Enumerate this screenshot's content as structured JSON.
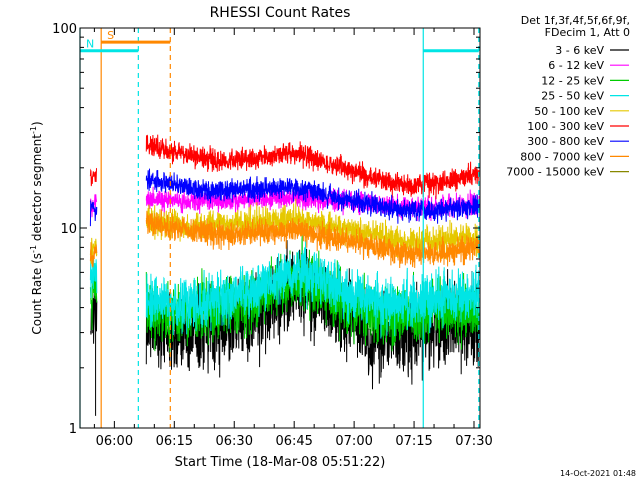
{
  "chart_data": {
    "type": "line",
    "title": "RHESSI Count Rates",
    "xlabel": "Start Time (18-Mar-08 05:51:22)",
    "ylabel_main": "Count Rate (s",
    "ylabel_sup": "-1",
    "ylabel_tail": " detector segment",
    "ylabel_sup2": "-1",
    "ylabel_close": ")",
    "x_range_min": [
      351.4,
      451.5
    ],
    "y_scale": "log",
    "ylim": [
      1,
      100
    ],
    "x_ticks": [
      {
        "min": 360,
        "label": "06:00"
      },
      {
        "min": 375,
        "label": "06:15"
      },
      {
        "min": 390,
        "label": "06:30"
      },
      {
        "min": 405,
        "label": "06:45"
      },
      {
        "min": 420,
        "label": "07:00"
      },
      {
        "min": 435,
        "label": "07:15"
      },
      {
        "min": 450,
        "label": "07:30"
      }
    ],
    "y_ticks": [
      {
        "value": 1,
        "label": "1"
      },
      {
        "value": 10,
        "label": "10"
      },
      {
        "value": 100,
        "label": "100"
      }
    ],
    "legend": {
      "header": [
        "Det 1f,3f,4f,5f,6f,9f,",
        "FDecim 1, Att 0"
      ],
      "entries": [
        {
          "label": "3 - 6 keV",
          "color": "#000000"
        },
        {
          "label": "6 - 12 keV",
          "color": "#ff00ff"
        },
        {
          "label": "12 - 25 keV",
          "color": "#00cc00"
        },
        {
          "label": "25 - 50 keV",
          "color": "#00e5e5"
        },
        {
          "label": "50 - 100 keV",
          "color": "#e5c800"
        },
        {
          "label": "100 - 300 keV",
          "color": "#ff0000"
        },
        {
          "label": "300 - 800 keV",
          "color": "#0000ff"
        },
        {
          "label": "800 - 7000 keV",
          "color": "#ff8800"
        },
        {
          "label": "7000 - 15000 keV",
          "color": "#888800"
        }
      ]
    },
    "gaps": [
      {
        "start_min": 355.7,
        "end_min": 367.6
      }
    ],
    "series": [
      {
        "name": "3 - 6 keV",
        "color": "#000000",
        "early": [
          3.2,
          3.6
        ],
        "main": [
          [
            368,
            3.3
          ],
          [
            376,
            3.0
          ],
          [
            386,
            3.2
          ],
          [
            396,
            3.7
          ],
          [
            404,
            4.6
          ],
          [
            407,
            4.9
          ],
          [
            412,
            4.3
          ],
          [
            418,
            3.4
          ],
          [
            425,
            3.0
          ],
          [
            432,
            3.0
          ],
          [
            440,
            3.2
          ],
          [
            448,
            3.4
          ],
          [
            451.5,
            3.4
          ]
        ],
        "noise": 0.22
      },
      {
        "name": "6 - 12 keV",
        "color": "#ff00ff",
        "early": [
          13.0,
          13.5
        ],
        "main": [
          [
            368,
            14.0
          ],
          [
            376,
            13.6
          ],
          [
            386,
            13.6
          ],
          [
            396,
            13.9
          ],
          [
            405,
            14.2
          ],
          [
            414,
            13.6
          ],
          [
            424,
            13.2
          ],
          [
            432,
            12.8
          ],
          [
            440,
            12.6
          ],
          [
            448,
            13.2
          ],
          [
            451.5,
            13.2
          ]
        ],
        "noise": 0.06
      },
      {
        "name": "12 - 25 keV",
        "color": "#00cc00",
        "early": [
          5.0,
          5.5
        ],
        "main": [
          [
            368,
            3.9
          ],
          [
            376,
            3.6
          ],
          [
            386,
            3.9
          ],
          [
            396,
            4.4
          ],
          [
            404,
            5.3
          ],
          [
            407,
            5.5
          ],
          [
            412,
            5.0
          ],
          [
            418,
            4.1
          ],
          [
            425,
            3.7
          ],
          [
            432,
            3.6
          ],
          [
            440,
            3.8
          ],
          [
            448,
            3.9
          ],
          [
            451.5,
            4.0
          ]
        ],
        "noise": 0.17
      },
      {
        "name": "25 - 50 keV",
        "color": "#00e5e5",
        "early": [
          5.6,
          6.0
        ],
        "main": [
          [
            368,
            4.4
          ],
          [
            376,
            4.1
          ],
          [
            386,
            4.4
          ],
          [
            396,
            5.0
          ],
          [
            404,
            5.9
          ],
          [
            407,
            6.0
          ],
          [
            412,
            5.6
          ],
          [
            418,
            4.7
          ],
          [
            425,
            4.3
          ],
          [
            432,
            4.2
          ],
          [
            440,
            4.4
          ],
          [
            448,
            4.6
          ],
          [
            451.5,
            4.7
          ]
        ],
        "noise": 0.14
      },
      {
        "name": "50 - 100 keV",
        "color": "#e5c800",
        "early": [
          7.6,
          8.0
        ],
        "main": [
          [
            368,
            10.8
          ],
          [
            376,
            10.3
          ],
          [
            386,
            10.4
          ],
          [
            396,
            10.6
          ],
          [
            405,
            11.0
          ],
          [
            414,
            10.1
          ],
          [
            424,
            9.2
          ],
          [
            432,
            8.6
          ],
          [
            440,
            8.5
          ],
          [
            448,
            9.0
          ],
          [
            451.5,
            9.0
          ]
        ],
        "noise": 0.08
      },
      {
        "name": "100 - 300 keV",
        "color": "#ff0000",
        "early": [
          17.0,
          18.5
        ],
        "main": [
          [
            368,
            26.0
          ],
          [
            376,
            24.0
          ],
          [
            386,
            21.5
          ],
          [
            396,
            22.5
          ],
          [
            405,
            24.0
          ],
          [
            414,
            21.0
          ],
          [
            424,
            18.0
          ],
          [
            432,
            16.5
          ],
          [
            440,
            16.5
          ],
          [
            448,
            18.0
          ],
          [
            451.5,
            19.0
          ]
        ],
        "noise": 0.06
      },
      {
        "name": "300 - 800 keV",
        "color": "#0000ff",
        "early": [
          12.0,
          12.5
        ],
        "main": [
          [
            368,
            17.5
          ],
          [
            376,
            16.2
          ],
          [
            386,
            15.3
          ],
          [
            396,
            15.6
          ],
          [
            405,
            16.0
          ],
          [
            414,
            14.5
          ],
          [
            424,
            13.0
          ],
          [
            432,
            12.3
          ],
          [
            440,
            12.2
          ],
          [
            448,
            12.8
          ],
          [
            451.5,
            13.0
          ]
        ],
        "noise": 0.06
      },
      {
        "name": "800 - 7000 keV",
        "color": "#ff8800",
        "early": [
          7.0,
          7.5
        ],
        "main": [
          [
            368,
            10.8
          ],
          [
            376,
            9.9
          ],
          [
            386,
            9.2
          ],
          [
            396,
            9.4
          ],
          [
            405,
            9.8
          ],
          [
            414,
            9.0
          ],
          [
            424,
            8.1
          ],
          [
            432,
            7.6
          ],
          [
            440,
            7.4
          ],
          [
            448,
            7.9
          ],
          [
            451.5,
            8.0
          ]
        ],
        "noise": 0.07
      },
      {
        "name": "7000 - 15000 keV",
        "color": "#888800",
        "early": [],
        "main": [],
        "noise": 0
      }
    ],
    "markers": [
      {
        "type": "attenuator",
        "color": "#00e5e5",
        "x_min": 351.4,
        "style": "solid"
      },
      {
        "type": "attenuator",
        "color": "#ff8800",
        "x_min": 356.7,
        "style": "solid"
      },
      {
        "type": "attenuator",
        "color": "#00e5e5",
        "x_min": 366.0,
        "style": "dashed"
      },
      {
        "type": "attenuator",
        "color": "#ff8800",
        "x_min": 374.0,
        "style": "dashed"
      },
      {
        "type": "attenuator",
        "color": "#00e5e5",
        "x_min": 437.3,
        "style": "solid"
      },
      {
        "type": "attenuator",
        "color": "#00e5e5",
        "x_min": 451.2,
        "style": "dashed"
      },
      {
        "type": "interval",
        "color": "#ff8800",
        "x_start_min": 356.7,
        "x_end_min": 374.0,
        "y_value": 85,
        "label": "S"
      },
      {
        "type": "interval",
        "color": "#00e5e5",
        "x_start_min": 351.4,
        "x_end_min": 366.0,
        "y_value": 77,
        "label": "N"
      },
      {
        "type": "interval",
        "color": "#00e5e5",
        "x_start_min": 437.3,
        "x_end_min": 451.2,
        "y_value": 77,
        "label": ""
      }
    ],
    "timestamp": "14-Oct-2021 01:48",
    "grid": false,
    "legend_position": "right"
  }
}
